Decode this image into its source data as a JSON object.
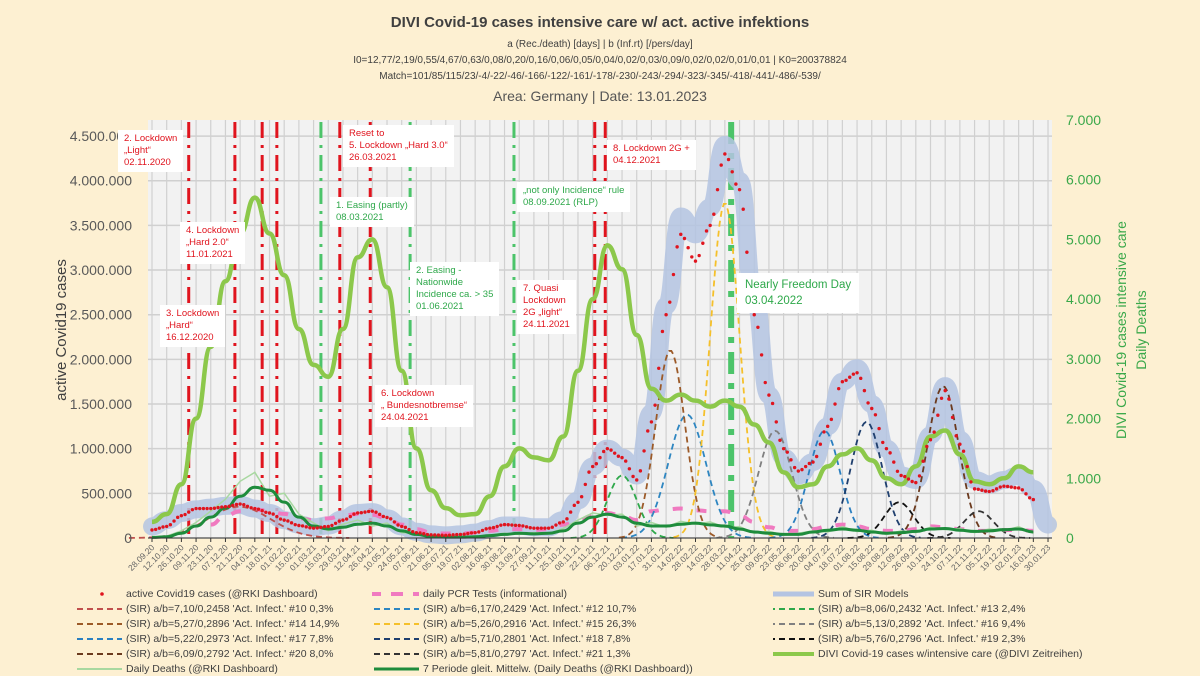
{
  "header": {
    "title": "DIVI Covid-19 cases intensive care w/ act. active infektions",
    "subtitle1": "a (Rec./death) [days] | b (Inf.rt) [/pers/day]",
    "subtitle2": "I0=12,77/2,19/0,55/4,67/0,63/0,08/0,20/0,16/0,06/0,05/0,04/0,02/0,03/0,09/0,02/0,02/0,01/0,01   | K0=200378824",
    "subtitle3": "Match=101/85/115/23/-4/-22/-46/-166/-122/-161/-178/-230/-243/-294/-323/-345/-418/-441/-486/-539/",
    "area_date": "Area: Germany | Date: 13.01.2023"
  },
  "chart_data": {
    "type": "line",
    "title": "DIVI Covid-19 cases intensive care w/ act. active infektions",
    "ylabel_left": "active Covid19 cases",
    "ylabel_right": "DIVI Covid-19 cases intensive care",
    "ylabel_right2": "Daily Deaths",
    "ylim_left": [
      0,
      4680000
    ],
    "ylim_right": [
      0,
      7000
    ],
    "grid": true,
    "legend_placement": "bottom",
    "left_ticks": [
      "0",
      "500.000",
      "1.000.000",
      "1.500.000",
      "2.000.000",
      "2.500.000",
      "3.000.000",
      "3.500.000",
      "4.000.000",
      "4.500.000"
    ],
    "right_ticks": [
      "0",
      "1.000",
      "2.000",
      "3.000",
      "4.000",
      "5.000",
      "6.000",
      "7.000"
    ],
    "categories": [
      "28.09.20",
      "12.10.20",
      "26.10.20",
      "09.11.20",
      "23.11.20",
      "07.12.20",
      "21.12.20",
      "04.01.21",
      "18.01.21",
      "01.02.21",
      "15.02.21",
      "01.03.21",
      "15.03.21",
      "29.03.21",
      "12.04.21",
      "26.04.21",
      "10.05.21",
      "24.05.21",
      "07.06.21",
      "21.06.21",
      "05.07.21",
      "19.07.21",
      "02.08.21",
      "16.08.21",
      "30.08.21",
      "13.09.21",
      "27.09.21",
      "11.10.21",
      "25.10.21",
      "08.11.21",
      "22.11.21",
      "06.12.21",
      "20.12.21",
      "03.01.22",
      "17.01.22",
      "31.01.22",
      "14.02.22",
      "28.02.22",
      "14.03.22",
      "28.03.22",
      "11.04.22",
      "25.04.22",
      "09.05.22",
      "23.05.22",
      "06.06.22",
      "20.06.22",
      "04.07.22",
      "18.07.22",
      "01.08.22",
      "15.08.22",
      "29.08.22",
      "12.09.22",
      "26.09.22",
      "10.10.22",
      "24.10.22",
      "07.11.22",
      "21.11.22",
      "05.12.22",
      "19.12.22",
      "02.01.23",
      "16.01.23",
      "30.01.23"
    ],
    "series": [
      {
        "name": "active Covid19 cases (@RKI Dashboard)",
        "axis": "left",
        "style": "dots",
        "color": "#e0141e",
        "values": [
          90000,
          130000,
          250000,
          330000,
          330000,
          350000,
          380000,
          330000,
          280000,
          200000,
          140000,
          110000,
          130000,
          200000,
          280000,
          300000,
          230000,
          130000,
          60000,
          35000,
          30000,
          40000,
          60000,
          110000,
          150000,
          140000,
          110000,
          110000,
          180000,
          400000,
          800000,
          1000000,
          900000,
          650000,
          1300000,
          2500000,
          3400000,
          3100000,
          3500000,
          4300000,
          3900000,
          2500000,
          1600000,
          1000000,
          750000,
          850000,
          1250000,
          1750000,
          1850000,
          1450000,
          1000000,
          700000,
          620000,
          1100000,
          1650000,
          1050000,
          550000,
          520000,
          580000,
          560000,
          430000,
          null
        ]
      },
      {
        "name": "daily PCR Tests (informational)",
        "axis": "left",
        "style": "pink-dash",
        "color": "#f07ac0",
        "values": [
          null,
          null,
          null,
          null,
          150000,
          250000,
          300000,
          320000,
          300000,
          270000,
          220000,
          200000,
          220000,
          250000,
          270000,
          260000,
          220000,
          150000,
          100000,
          60000,
          50000,
          50000,
          60000,
          80000,
          100000,
          100000,
          90000,
          100000,
          150000,
          200000,
          250000,
          280000,
          250000,
          200000,
          300000,
          320000,
          330000,
          310000,
          300000,
          300000,
          250000,
          180000,
          120000,
          80000,
          80000,
          100000,
          130000,
          150000,
          130000,
          100000,
          80000,
          80000,
          100000,
          130000,
          120000,
          100000,
          80000,
          80000,
          90000,
          90000,
          80000,
          null
        ]
      },
      {
        "name": "Sum of SIR Models",
        "axis": "left",
        "style": "band",
        "color": "#b4c4e2",
        "values": [
          130000,
          200000,
          280000,
          320000,
          340000,
          360000,
          370000,
          330000,
          280000,
          200000,
          150000,
          120000,
          140000,
          210000,
          280000,
          290000,
          220000,
          130000,
          70000,
          40000,
          30000,
          40000,
          60000,
          100000,
          140000,
          140000,
          120000,
          120000,
          200000,
          420000,
          800000,
          1000000,
          900000,
          700000,
          1400000,
          2600000,
          3600000,
          3400000,
          3700000,
          4400000,
          4000000,
          2700000,
          1600000,
          900000,
          700000,
          850000,
          1250000,
          1750000,
          1900000,
          1500000,
          1000000,
          700000,
          650000,
          1150000,
          1700000,
          1100000,
          650000,
          600000,
          650000,
          700000,
          550000,
          150000
        ]
      },
      {
        "name": "DIVI  Covid-19 cases w/intensive care (@DIVI Zeitreihen)",
        "axis": "right",
        "style": "thick",
        "color": "#8cc84b",
        "values": [
          270,
          400,
          900,
          2000,
          3200,
          4300,
          5100,
          5700,
          5100,
          4400,
          3500,
          2900,
          2700,
          3500,
          4700,
          5000,
          4200,
          2800,
          1500,
          800,
          500,
          380,
          400,
          700,
          1200,
          1500,
          1350,
          1300,
          1700,
          2800,
          4000,
          4900,
          4500,
          3400,
          2500,
          2300,
          2400,
          2300,
          2200,
          2300,
          2200,
          1900,
          1600,
          1100,
          850,
          900,
          1200,
          1400,
          1500,
          1300,
          1000,
          900,
          1200,
          1700,
          1800,
          1400,
          950,
          900,
          1000,
          1200,
          1100,
          null
        ]
      },
      {
        "name": "Daily Deaths  (@RKI Dashboard)",
        "axis": "right",
        "style": "thin",
        "color": "#a8d8a0",
        "values": [
          15,
          30,
          120,
          260,
          450,
          650,
          950,
          1100,
          700,
          750,
          400,
          250,
          120,
          230,
          300,
          200,
          250,
          90,
          80,
          20,
          25,
          10,
          30,
          50,
          80,
          60,
          90,
          70,
          160,
          300,
          420,
          380,
          400,
          200,
          260,
          180,
          280,
          230,
          270,
          180,
          190,
          80,
          110,
          50,
          80,
          120,
          100,
          190,
          110,
          130,
          60,
          120,
          90,
          180,
          140,
          160,
          90,
          150,
          120,
          190,
          80,
          null
        ]
      },
      {
        "name": "7 Periode gleit. Mittelw. (Daily Deaths  (@RKI Dashboard))",
        "axis": "right",
        "style": "medium",
        "color": "#1e8c3c",
        "values": [
          10,
          20,
          80,
          200,
          350,
          500,
          700,
          850,
          800,
          600,
          350,
          200,
          150,
          180,
          230,
          250,
          200,
          120,
          60,
          25,
          15,
          15,
          20,
          40,
          60,
          80,
          70,
          80,
          120,
          250,
          350,
          400,
          350,
          250,
          200,
          200,
          230,
          250,
          220,
          200,
          150,
          100,
          80,
          60,
          60,
          100,
          130,
          150,
          130,
          100,
          80,
          90,
          110,
          150,
          160,
          130,
          110,
          120,
          140,
          150,
          100,
          null
        ]
      }
    ],
    "sir_models": [
      {
        "name": "(SIR)  a/b=7,10/0,2458 'Act. Infect.' #10  0,3%",
        "color": "#c0504d",
        "peak_date": "20.12.20",
        "peak": 350000,
        "sd_days": 30
      },
      {
        "name": "(SIR)  a/b=6,17/0,2429 'Act. Infect.' #12  10,7%",
        "color": "#2e86c1",
        "peak_date": "20.02.22",
        "peak": 1380000,
        "sd_days": 18
      },
      {
        "name": "(SIR)  a/b=8,06/0,2432 'Act. Infect.' #13  2,4%",
        "color": "#2ea84a",
        "peak_date": "20.12.21",
        "peak": 700000,
        "sd_days": 14
      },
      {
        "name": "(SIR)  a/b=5,27/0,2896 'Act. Infect.' #14  14,9%",
        "color": "#9c5a28",
        "peak_date": "04.02.22",
        "peak": 2100000,
        "sd_days": 14
      },
      {
        "name": "(SIR)  a/b=5,26/0,2916 'Act. Infect.' #15  26,3%",
        "color": "#f5c02a",
        "peak_date": "28.03.22",
        "peak": 3750000,
        "sd_days": 14
      },
      {
        "name": "(SIR)  a/b=5,13/0,2892 'Act. Infect.' #16  9,4%",
        "color": "#808080",
        "peak_date": "15.05.22",
        "peak": 1200000,
        "sd_days": 16
      },
      {
        "name": "(SIR)  a/b=5,22/0,2973 'Act. Infect.' #17  7,8%",
        "color": "#2a7fc0",
        "peak_date": "01.07.22",
        "peak": 1200000,
        "sd_days": 15
      },
      {
        "name": "(SIR)  a/b=5,71/0,2801 'Act. Infect.' #18  7,8%",
        "color": "#1f3f6e",
        "peak_date": "10.08.22",
        "peak": 1300000,
        "sd_days": 15
      },
      {
        "name": "(SIR)  a/b=5,76/0,2796 'Act. Infect.' #19  2,3%",
        "color": "#111111",
        "peak_date": "10.09.22",
        "peak": 400000,
        "sd_days": 14
      },
      {
        "name": "(SIR)  a/b=6,09/0,2792 'Act. Infect.' #20  8,0%",
        "color": "#6b3a1e",
        "peak_date": "22.10.22",
        "peak": 1700000,
        "sd_days": 15
      },
      {
        "name": "(SIR)  a/b=5,81/0,2797 'Act. Infect.' #21  1,3%",
        "color": "#333333",
        "peak_date": "25.11.22",
        "peak": 300000,
        "sd_days": 14
      }
    ],
    "measure_lines": [
      {
        "date": "02.11.20",
        "color": "#e0141e"
      },
      {
        "date": "16.12.20",
        "color": "#e0141e"
      },
      {
        "date": "11.01.21",
        "color": "#e0141e"
      },
      {
        "date": "25.01.21",
        "color": "#e0141e"
      },
      {
        "date": "08.03.21",
        "color": "#4cc46a"
      },
      {
        "date": "26.03.21",
        "color": "#e0141e"
      },
      {
        "date": "24.04.21",
        "color": "#e0141e"
      },
      {
        "date": "01.06.21",
        "color": "#4cc46a"
      },
      {
        "date": "08.09.21",
        "color": "#4cc46a"
      },
      {
        "date": "24.11.21",
        "color": "#e0141e"
      },
      {
        "date": "04.12.21",
        "color": "#e0141e"
      },
      {
        "date": "03.04.22",
        "color": "#4cc46a",
        "bold": true
      }
    ],
    "annotations": [
      {
        "color": "red",
        "lines": [
          "2. Lockdown",
          "„Light“",
          "02.11.2020"
        ]
      },
      {
        "color": "red",
        "lines": [
          "3. Lockdown",
          "„Hard“",
          "16.12.2020"
        ]
      },
      {
        "color": "red",
        "lines": [
          "4. Lockdown",
          "„Hard 2.0“",
          "11.01.2021"
        ]
      },
      {
        "color": "red",
        "lines": [
          "Reset to",
          "5. Lockdown „Hard 3.0“",
          "26.03.2021"
        ]
      },
      {
        "color": "green",
        "lines": [
          "1. Easing (partly)",
          "08.03.2021"
        ]
      },
      {
        "color": "green",
        "lines": [
          "2. Easing -",
          "Nationwide",
          "Incidence ca. > 35",
          "01.06.2021"
        ]
      },
      {
        "color": "red",
        "lines": [
          "6. Lockdown",
          "„ Bundesnotbremse“",
          "24.04.2021"
        ]
      },
      {
        "color": "green",
        "lines": [
          "„not only Incidence“ rule",
          "08.09.2021 (RLP)"
        ]
      },
      {
        "color": "red",
        "lines": [
          "7. Quasi",
          "Lockdown",
          "2G  „light“",
          "24.11.2021"
        ]
      },
      {
        "color": "red",
        "lines": [
          "8. Lockdown 2G +",
          "04.12.2021"
        ]
      },
      {
        "color": "green",
        "lines": [
          "Nearly Freedom  Day",
          "03.04.2022"
        ]
      }
    ]
  }
}
